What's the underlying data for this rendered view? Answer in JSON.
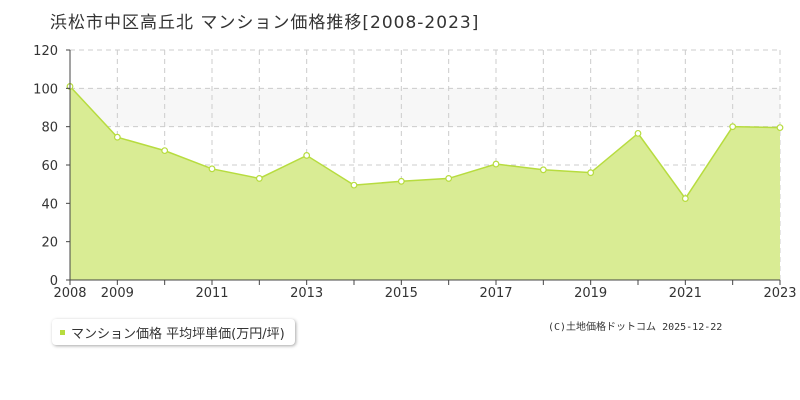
{
  "title": "浜松市中区高丘北 マンション価格推移[2008-2023]",
  "credit": "(C)土地価格ドットコム 2025-12-22",
  "colors": {
    "area_fill": "#d9ec94",
    "line": "#b7dc3f",
    "point_fill": "#ffffff",
    "grid": "#cccccc",
    "band": "#f7f7f7",
    "axis": "#444444",
    "legend_swatch": "#b7dc3f"
  },
  "chart_data": {
    "type": "area",
    "title": "浜松市中区高丘北 マンション価格推移[2008-2023]",
    "xlabel": "",
    "ylabel": "",
    "ylim": [
      0,
      120
    ],
    "xlim": [
      2008,
      2023
    ],
    "yticks": [
      "0",
      "20",
      "40",
      "60",
      "80",
      "100",
      "120"
    ],
    "xticks": [
      "2008",
      "2009",
      "2011",
      "2013",
      "2015",
      "2017",
      "2019",
      "2021",
      "2023"
    ],
    "grid": true,
    "legend": "bottom-left",
    "series": [
      {
        "name": "マンション価格 平均坪単価(万円/坪)",
        "x": [
          2008,
          2009,
          2010,
          2011,
          2012,
          2013,
          2014,
          2015,
          2016,
          2017,
          2018,
          2019,
          2020,
          2021,
          2022,
          2023
        ],
        "values": [
          101,
          74.5,
          67.5,
          58,
          53,
          65,
          49.5,
          51.5,
          53,
          60.5,
          57.5,
          56,
          76.5,
          42.5,
          80,
          79.5
        ]
      }
    ]
  }
}
